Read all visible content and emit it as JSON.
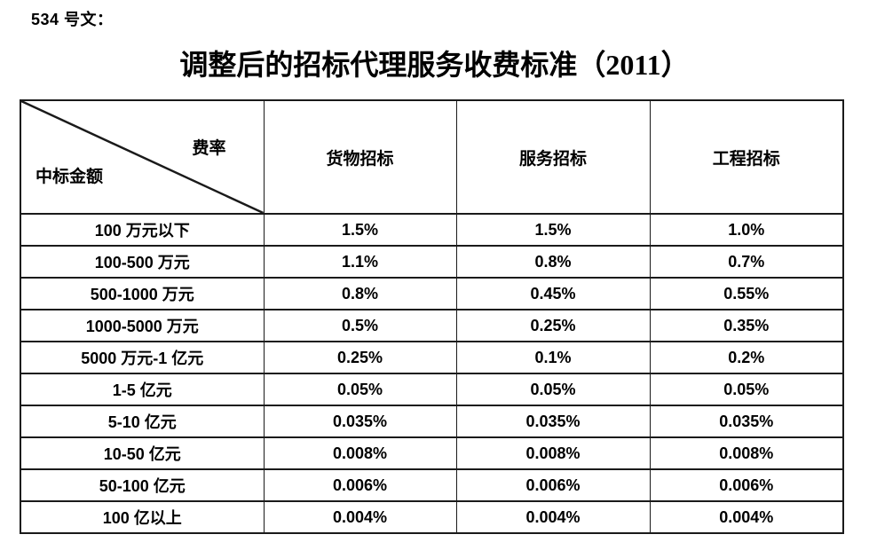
{
  "page": {
    "doc_label": "534 号文：",
    "title": "调整后的招标代理服务收费标准（2011）"
  },
  "table": {
    "corner": {
      "top_right": "费率",
      "bottom_left": "中标金额"
    },
    "columns": [
      "货物招标",
      "服务招标",
      "工程招标"
    ],
    "rows": [
      {
        "label": "100 万元以下",
        "values": [
          "1.5%",
          "1.5%",
          "1.0%"
        ]
      },
      {
        "label": "100-500 万元",
        "values": [
          "1.1%",
          "0.8%",
          "0.7%"
        ]
      },
      {
        "label": "500-1000 万元",
        "values": [
          "0.8%",
          "0.45%",
          "0.55%"
        ]
      },
      {
        "label": "1000-5000 万元",
        "values": [
          "0.5%",
          "0.25%",
          "0.35%"
        ]
      },
      {
        "label": "5000 万元-1 亿元",
        "values": [
          "0.25%",
          "0.1%",
          "0.2%"
        ]
      },
      {
        "label": "1-5 亿元",
        "values": [
          "0.05%",
          "0.05%",
          "0.05%"
        ]
      },
      {
        "label": "5-10 亿元",
        "values": [
          "0.035%",
          "0.035%",
          "0.035%"
        ]
      },
      {
        "label": "10-50 亿元",
        "values": [
          "0.008%",
          "0.008%",
          "0.008%"
        ]
      },
      {
        "label": "50-100 亿元",
        "values": [
          "0.006%",
          "0.006%",
          "0.006%"
        ]
      },
      {
        "label": "100 亿以上",
        "values": [
          "0.004%",
          "0.004%",
          "0.004%"
        ]
      }
    ]
  },
  "colors": {
    "text": "#000000",
    "border": "#1a1a1a",
    "background": "#ffffff"
  }
}
